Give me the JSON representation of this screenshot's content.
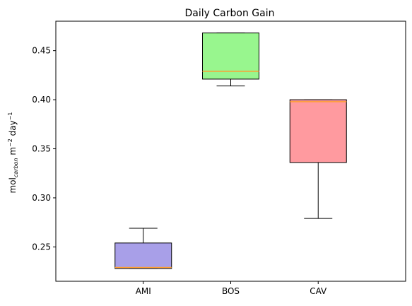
{
  "chart_data": {
    "type": "boxplot",
    "title": "Daily Carbon Gain",
    "xlabel": "",
    "ylabel": {
      "base": "mol",
      "sub": "carbon",
      "mid": " m",
      "sup1": "−2",
      "end": " day",
      "sup2": "−1"
    },
    "ylim": [
      0.215,
      0.48
    ],
    "yticks": [
      0.25,
      0.3,
      0.35,
      0.4,
      0.45
    ],
    "ytick_labels": [
      "0.25",
      "0.30",
      "0.35",
      "0.40",
      "0.45"
    ],
    "grid": false,
    "categories": [
      "AMI",
      "BOS",
      "CAV"
    ],
    "boxes": [
      {
        "category": "AMI",
        "whisker_low": 0.228,
        "q1": 0.228,
        "median": 0.229,
        "q3": 0.254,
        "whisker_high": 0.269,
        "color": "#a89fe8"
      },
      {
        "category": "BOS",
        "whisker_low": 0.414,
        "q1": 0.421,
        "median": 0.429,
        "q3": 0.468,
        "whisker_high": 0.468,
        "color": "#98f68e"
      },
      {
        "category": "CAV",
        "whisker_low": 0.279,
        "q1": 0.336,
        "median": 0.398,
        "q3": 0.4,
        "whisker_high": 0.4,
        "color": "#ff9a9f"
      }
    ],
    "median_color": "#ff9f32"
  }
}
